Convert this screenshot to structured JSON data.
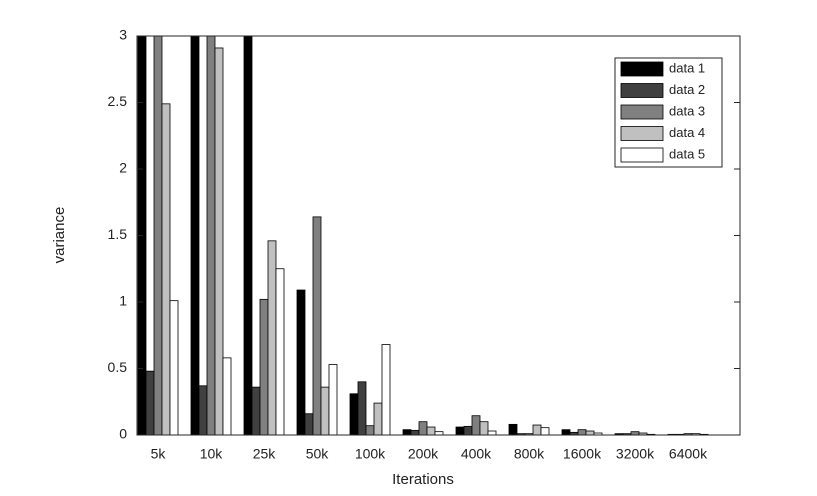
{
  "chart_data": {
    "type": "bar",
    "xlabel": "Iterations",
    "ylabel": "variance",
    "categories": [
      "5k",
      "10k",
      "25k",
      "50k",
      "100k",
      "200k",
      "400k",
      "800k",
      "1600k",
      "3200k",
      "6400k"
    ],
    "series": [
      {
        "name": "data 1",
        "color": "#000000",
        "values": [
          3,
          3,
          3,
          1.09,
          0.31,
          0.04,
          0.06,
          0.08,
          0.04,
          0.01,
          0.005
        ]
      },
      {
        "name": "data 2",
        "color": "#404040",
        "values": [
          0.48,
          0.37,
          0.36,
          0.16,
          0.4,
          0.035,
          0.065,
          0.01,
          0.02,
          0.01,
          0.005
        ]
      },
      {
        "name": "data 3",
        "color": "#808080",
        "values": [
          3,
          3,
          1.02,
          1.64,
          0.07,
          0.1,
          0.145,
          0.01,
          0.04,
          0.025,
          0.01
        ]
      },
      {
        "name": "data 4",
        "color": "#c0c0c0",
        "values": [
          2.49,
          2.91,
          1.46,
          0.36,
          0.24,
          0.06,
          0.1,
          0.075,
          0.03,
          0.015,
          0.01
        ]
      },
      {
        "name": "data 5",
        "color": "#ffffff",
        "values": [
          1.01,
          0.58,
          1.25,
          0.53,
          0.68,
          0.025,
          0.03,
          0.055,
          0.015,
          0.005,
          0.005
        ]
      }
    ],
    "ylim": [
      0,
      3
    ],
    "yticks": [
      0,
      0.5,
      1,
      1.5,
      2,
      2.5,
      3
    ],
    "legend": "upper right"
  }
}
